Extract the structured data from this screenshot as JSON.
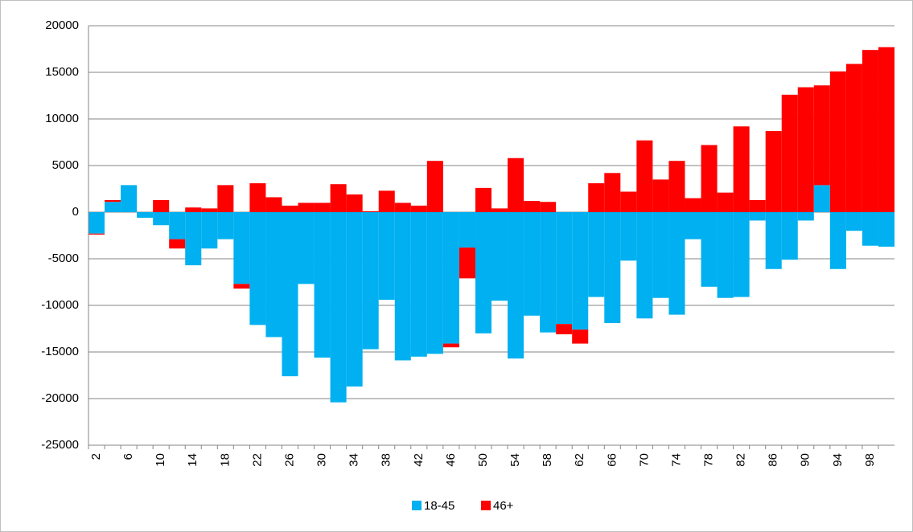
{
  "chart_data": {
    "type": "stacked_bar",
    "categories": [
      2,
      null,
      6,
      null,
      10,
      null,
      14,
      null,
      18,
      null,
      22,
      null,
      26,
      null,
      30,
      null,
      34,
      null,
      38,
      null,
      42,
      null,
      46,
      null,
      50,
      null,
      54,
      null,
      58,
      null,
      62,
      null,
      66,
      null,
      70,
      null,
      74,
      null,
      78,
      null,
      82,
      null,
      86,
      null,
      90,
      null,
      94,
      null,
      98,
      null
    ],
    "series": [
      {
        "name": "18-45",
        "color": "#00b0f0",
        "values": [
          -2300,
          1100,
          2900,
          -600,
          -1400,
          -2900,
          -5700,
          -3900,
          -2900,
          -7700,
          -12100,
          -13400,
          -17600,
          -7700,
          -15600,
          -20400,
          -18700,
          -14700,
          -9400,
          -15900,
          -15500,
          -15200,
          -14100,
          -3800,
          -13000,
          -9500,
          -15700,
          -11100,
          -12900,
          -12000,
          -12600,
          -9100,
          -11900,
          -5200,
          -11400,
          -9200,
          -11000,
          -2900,
          -8000,
          -9200,
          -9100,
          -900,
          -6100,
          -5100,
          -900,
          2900,
          -6100,
          -2000,
          -3600,
          -3700
        ]
      },
      {
        "name": "46+",
        "color": "#ff0000",
        "values": [
          -100,
          200,
          0,
          0,
          1300,
          -1000,
          500,
          400,
          2900,
          -500,
          3100,
          1600,
          700,
          1000,
          1000,
          3000,
          1900,
          100,
          2300,
          1000,
          700,
          5500,
          -400,
          -3300,
          2600,
          400,
          5800,
          1200,
          1100,
          -1100,
          -1500,
          3100,
          4200,
          2200,
          7700,
          3500,
          5500,
          1500,
          7200,
          2100,
          9200,
          1300,
          8700,
          12600,
          13400,
          10700,
          15100,
          15900,
          17400,
          17700
        ]
      }
    ],
    "ylim": [
      -25000,
      20000
    ],
    "yticks": [
      -25000,
      -20000,
      -15000,
      -10000,
      -5000,
      0,
      5000,
      10000,
      15000,
      20000
    ],
    "grid": true,
    "legend": "bottom"
  }
}
